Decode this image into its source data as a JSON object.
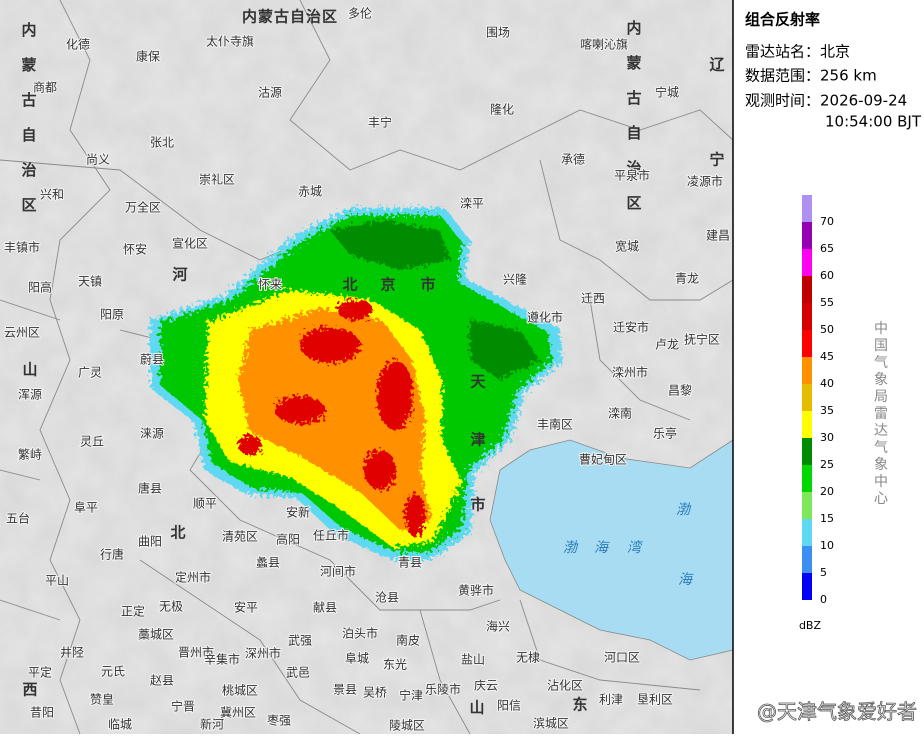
{
  "panel": {
    "title": "组合反射率",
    "station": "雷达站名：北京",
    "range": "数据范围：256 km",
    "time_date": "观测时间：2026-09-24",
    "time_clock": "10:54:00 BJT"
  },
  "legend": {
    "levels": [
      0,
      5,
      10,
      15,
      20,
      25,
      30,
      35,
      40,
      45,
      50,
      55,
      60,
      65,
      70
    ],
    "colors": [
      "#0000f6",
      "#3c8ef0",
      "#5fd8f2",
      "#7ee85a",
      "#00d800",
      "#008c00",
      "#ffff00",
      "#e6bc00",
      "#ff9000",
      "#ff0000",
      "#d40000",
      "#c00000",
      "#ff00f0",
      "#9600b4",
      "#ad90f0"
    ],
    "unit": "dBZ"
  },
  "credit": "中国气象局雷达气象中心",
  "watermark": "@天津气象爱好者",
  "map": {
    "title_label": "内蒙古自治区",
    "vertical_labels": [
      "内蒙古自治区",
      "内蒙古自治区"
    ],
    "region_labels": [
      "河",
      "北",
      "山",
      "西",
      "山",
      "东",
      "北",
      "京",
      "市",
      "天",
      "津",
      "市",
      "辽",
      "宁"
    ],
    "sea_labels": [
      "渤",
      "海",
      "湾",
      "渤",
      "海"
    ],
    "labels": [
      "化德",
      "康保",
      "太仆寺旗",
      "多伦",
      "围场",
      "喀喇沁旗",
      "宁城",
      "商都",
      "沽源",
      "丰宁",
      "隆化",
      "张北",
      "尚义",
      "崇礼区",
      "赤城",
      "承德",
      "平泉市",
      "凌源市",
      "兴和",
      "万全区",
      "滦平",
      "建昌",
      "丰镇市",
      "怀安",
      "宣化区",
      "宽城",
      "天镇",
      "阳高",
      "怀来",
      "兴隆",
      "青龙",
      "迁西",
      "阳原",
      "遵化市",
      "迁安市",
      "云州区",
      "卢龙",
      "抚宁区",
      "蔚县",
      "广灵",
      "滦州市",
      "浑源",
      "昌黎",
      "滦南",
      "丰南区",
      "涞源",
      "乐亭",
      "灵丘",
      "繁峙",
      "曹妃甸区",
      "唐县",
      "顺平",
      "阜平",
      "安新",
      "五台",
      "清苑区",
      "高阳",
      "任丘市",
      "曲阳",
      "行唐",
      "蠡县",
      "青县",
      "河间市",
      "定州市",
      "平山",
      "黄骅市",
      "沧县",
      "安平",
      "无极",
      "献县",
      "正定",
      "海兴",
      "泊头市",
      "藁城区",
      "南皮",
      "武强",
      "晋州市",
      "深州市",
      "井陉",
      "阜城",
      "盐山",
      "无棣",
      "河口区",
      "辛集市",
      "东光",
      "元氏",
      "武邑",
      "平定",
      "赵县",
      "沾化区",
      "庆云",
      "乐陵市",
      "景县",
      "桃城区",
      "吴桥",
      "宁津",
      "赞皇",
      "利津",
      "垦利区",
      "阳信",
      "宁晋",
      "昔阳",
      "冀州区",
      "枣强",
      "滨城区",
      "新河",
      "临城",
      "陵城区"
    ]
  }
}
